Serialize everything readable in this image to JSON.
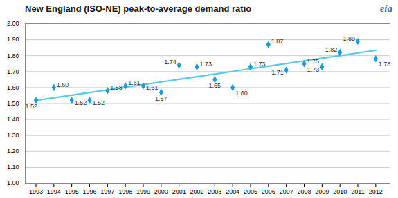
{
  "chart_data": {
    "type": "scatter",
    "title": "New England (ISO-NE)  peak-to-average  demand ratio",
    "x": [
      1993,
      1994,
      1995,
      1996,
      1997,
      1998,
      1999,
      2000,
      2001,
      2002,
      2003,
      2004,
      2005,
      2006,
      2007,
      2008,
      2009,
      2010,
      2011,
      2012
    ],
    "series": [
      {
        "type": "scatter",
        "marker": "diamond",
        "color": "#1B9CD9",
        "values": [
          1.52,
          1.6,
          1.52,
          1.52,
          1.58,
          1.61,
          1.61,
          1.57,
          1.74,
          1.73,
          1.65,
          1.6,
          1.73,
          1.87,
          1.71,
          1.75,
          1.73,
          1.82,
          1.89,
          1.78
        ],
        "value_labels": [
          "1.52",
          "1.60",
          "1.52",
          "1.52",
          "1.58",
          "1.61",
          "1.61",
          "1.57",
          "1.74",
          "1.73",
          "1.65",
          "1.60",
          "1.73",
          "1.87",
          "1.71",
          "1.75",
          "1.73",
          "1.82",
          "1.89",
          "1.78"
        ]
      },
      {
        "type": "line",
        "line_style": "solid",
        "color": "#5BC8E8",
        "values": [
          1.5194,
          1.536,
          1.5525,
          1.569,
          1.5856,
          1.6021,
          1.6186,
          1.6352,
          1.6517,
          1.6682,
          1.6848,
          1.7013,
          1.7178,
          1.7344,
          1.7509,
          1.7674,
          1.784,
          1.8005,
          1.817,
          1.8336
        ]
      }
    ],
    "xlim": [
      1992.4,
      2012.8
    ],
    "xticks": [
      1993,
      1994,
      1995,
      1996,
      1997,
      1998,
      1999,
      2000,
      2001,
      2002,
      2003,
      2004,
      2005,
      2006,
      2007,
      2008,
      2009,
      2010,
      2011,
      2012
    ],
    "ylim": [
      1.0,
      2.0
    ],
    "yticks": [
      {
        "value": 1.0,
        "label": "1.00"
      },
      {
        "value": 1.1,
        "label": "1.10"
      },
      {
        "value": 1.2,
        "label": "1.20"
      },
      {
        "value": 1.3,
        "label": "1.30"
      },
      {
        "value": 1.4,
        "label": "1.40"
      },
      {
        "value": 1.5,
        "label": "1.50"
      },
      {
        "value": 1.6,
        "label": "1.60"
      },
      {
        "value": 1.7,
        "label": "1.70"
      },
      {
        "value": 1.8,
        "label": "1.80"
      },
      {
        "value": 1.9,
        "label": "1.90"
      },
      {
        "value": 2.0,
        "label": "2.00"
      }
    ],
    "grid": true,
    "data_labels": true,
    "annotations": [
      "eia"
    ]
  }
}
